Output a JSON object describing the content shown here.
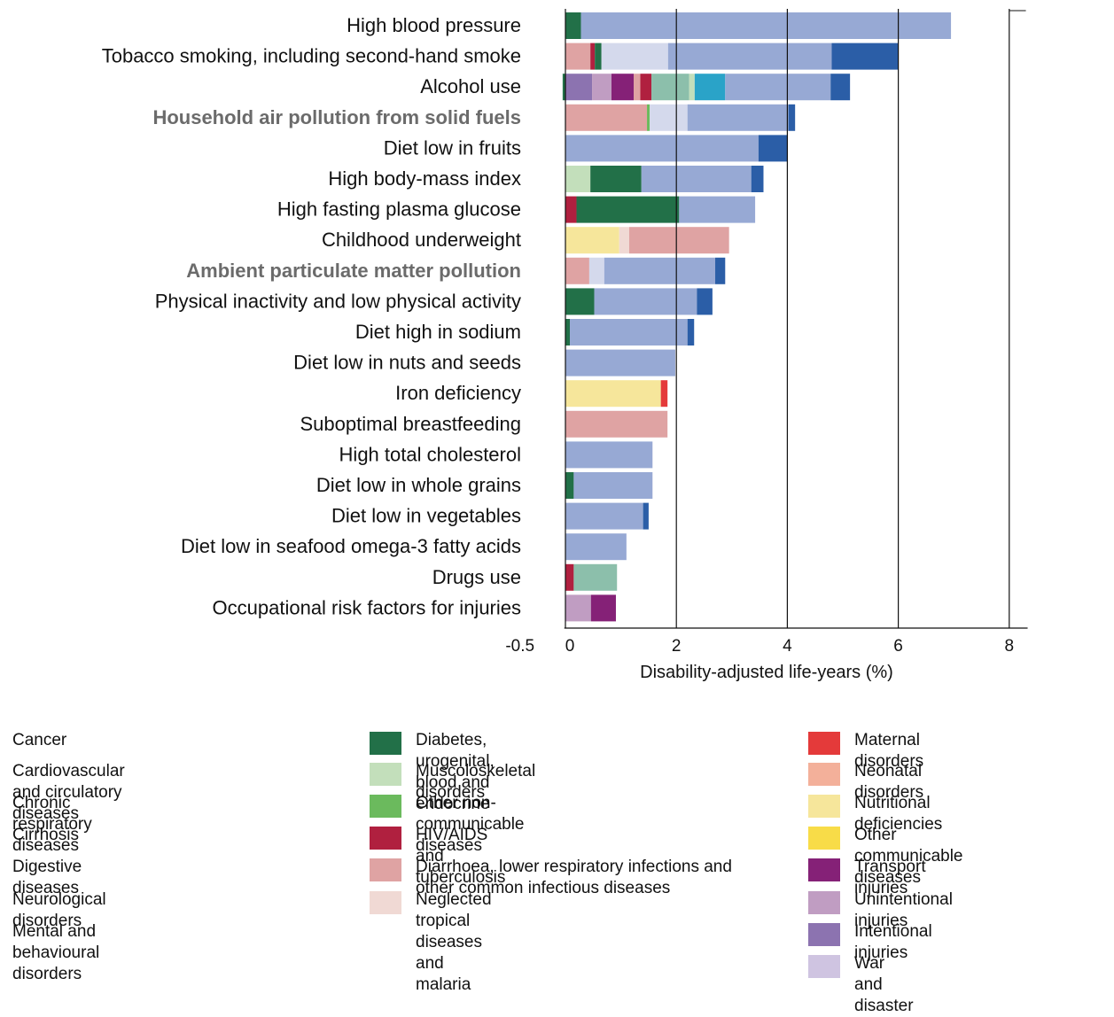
{
  "chart_data": {
    "type": "bar",
    "orientation": "horizontal",
    "stacked": true,
    "xlabel": "Disability-adjusted life-years (%)",
    "xlim": [
      -0.5,
      8.3
    ],
    "xticks": [
      "-0.5",
      "0",
      "2",
      "4",
      "6",
      "8"
    ],
    "xtick_values": [
      -0.5,
      0,
      2,
      4,
      6,
      8
    ],
    "grid": "vertical lines at 2, 4, 6, 8",
    "categories": [
      {
        "label": "High blood pressure",
        "highlight": false,
        "segments": [
          {
            "cause": "Diabetes, urogenital, blood and endocrine",
            "value": 0.28
          },
          {
            "cause": "Cardiovascular and circulatory diseases",
            "value": 6.67
          }
        ]
      },
      {
        "label": "Tobacco smoking, including second-hand smoke",
        "highlight": false,
        "segments": [
          {
            "cause": "Diarrhoea, lower respiratory infections and other common infectious diseases",
            "value": 0.45
          },
          {
            "cause": "HIV/AIDS and tuberculosis",
            "value": 0.08
          },
          {
            "cause": "Diabetes, urogenital, blood and endocrine",
            "value": 0.12
          },
          {
            "cause": "Cancer",
            "value": 1.2
          },
          {
            "cause": "Cardiovascular and circulatory diseases",
            "value": 2.95
          },
          {
            "cause": "Chronic respiratory diseases",
            "value": 1.2
          }
        ]
      },
      {
        "label": "Alcohol use",
        "highlight": false,
        "segments": [
          {
            "cause": "Diabetes, urogenital, blood and endocrine",
            "value": -0.05
          },
          {
            "cause": "Intentional injuries",
            "value": 0.48
          },
          {
            "cause": "Unintentional injuries",
            "value": 0.35
          },
          {
            "cause": "Transport injuries",
            "value": 0.4
          },
          {
            "cause": "Diarrhoea, lower respiratory infections and other common infectious diseases",
            "value": 0.12
          },
          {
            "cause": "HIV/AIDS and tuberculosis",
            "value": 0.2
          },
          {
            "cause": "Mental and behavioural disorders",
            "value": 0.68
          },
          {
            "cause": "Muscoloskeletal disorders",
            "value": 0.1
          },
          {
            "cause": "Digestive diseases",
            "value": 0.55
          },
          {
            "cause": "Cardiovascular and circulatory diseases",
            "value": 1.9
          },
          {
            "cause": "Chronic respiratory diseases",
            "value": 0.35
          }
        ]
      },
      {
        "label": "Household air pollution from solid fuels",
        "highlight": true,
        "segments": [
          {
            "cause": "Diarrhoea, lower respiratory infections and other common infectious diseases",
            "value": 1.47
          },
          {
            "cause": "Other non-communicable diseases",
            "value": 0.05
          },
          {
            "cause": "Cancer",
            "value": 0.68
          },
          {
            "cause": "Cardiovascular and circulatory diseases",
            "value": 1.82
          },
          {
            "cause": "Chronic respiratory diseases",
            "value": 0.12
          }
        ]
      },
      {
        "label": "Diet low in fruits",
        "highlight": false,
        "segments": [
          {
            "cause": "Cardiovascular and circulatory diseases",
            "value": 3.48
          },
          {
            "cause": "Chronic respiratory diseases",
            "value": 0.52
          }
        ]
      },
      {
        "label": "High body-mass index",
        "highlight": false,
        "segments": [
          {
            "cause": "Muscoloskeletal disorders",
            "value": 0.45
          },
          {
            "cause": "Diabetes, urogenital, blood and endocrine",
            "value": 0.92
          },
          {
            "cause": "Cardiovascular and circulatory diseases",
            "value": 1.98
          },
          {
            "cause": "Chronic respiratory diseases",
            "value": 0.22
          }
        ]
      },
      {
        "label": "High fasting plasma glucose",
        "highlight": false,
        "segments": [
          {
            "cause": "HIV/AIDS and tuberculosis",
            "value": 0.2
          },
          {
            "cause": "Diabetes, urogenital, blood and endocrine",
            "value": 1.85
          },
          {
            "cause": "Cardiovascular and circulatory diseases",
            "value": 1.37
          }
        ]
      },
      {
        "label": "Childhood underweight",
        "highlight": false,
        "segments": [
          {
            "cause": "Nutritional deficiencies",
            "value": 0.97
          },
          {
            "cause": "Neglected tropical diseases and malaria",
            "value": 0.18
          },
          {
            "cause": "Diarrhoea, lower respiratory infections and other common infectious diseases",
            "value": 1.8
          }
        ]
      },
      {
        "label": "Ambient particulate matter pollution",
        "highlight": true,
        "segments": [
          {
            "cause": "Diarrhoea, lower respiratory infections and other common infectious diseases",
            "value": 0.43
          },
          {
            "cause": "Cancer",
            "value": 0.27
          },
          {
            "cause": "Cardiovascular and circulatory diseases",
            "value": 2.0
          },
          {
            "cause": "Chronic respiratory diseases",
            "value": 0.18
          }
        ]
      },
      {
        "label": "Physical inactivity and low physical activity",
        "highlight": false,
        "segments": [
          {
            "cause": "Diabetes, urogenital, blood and endocrine",
            "value": 0.52
          },
          {
            "cause": "Cardiovascular and circulatory diseases",
            "value": 1.85
          },
          {
            "cause": "Chronic respiratory diseases",
            "value": 0.28
          }
        ]
      },
      {
        "label": "Diet high in sodium",
        "highlight": false,
        "segments": [
          {
            "cause": "Diabetes, urogenital, blood and endocrine",
            "value": 0.08
          },
          {
            "cause": "Cardiovascular and circulatory diseases",
            "value": 2.12
          },
          {
            "cause": "Chronic respiratory diseases",
            "value": 0.12
          }
        ]
      },
      {
        "label": "Diet low in nuts and seeds",
        "highlight": false,
        "segments": [
          {
            "cause": "Cardiovascular and circulatory diseases",
            "value": 1.98
          }
        ]
      },
      {
        "label": "Iron deficiency",
        "highlight": false,
        "segments": [
          {
            "cause": "Nutritional deficiencies",
            "value": 1.72
          },
          {
            "cause": "Maternal disorders",
            "value": 0.12
          }
        ]
      },
      {
        "label": "Suboptimal breastfeeding",
        "highlight": false,
        "segments": [
          {
            "cause": "Diarrhoea, lower respiratory infections and other common infectious diseases",
            "value": 1.84
          }
        ]
      },
      {
        "label": "High total cholesterol",
        "highlight": false,
        "segments": [
          {
            "cause": "Cardiovascular and circulatory diseases",
            "value": 1.57
          }
        ]
      },
      {
        "label": "Diet low in whole grains",
        "highlight": false,
        "segments": [
          {
            "cause": "Diabetes, urogenital, blood and endocrine",
            "value": 0.15
          },
          {
            "cause": "Cardiovascular and circulatory diseases",
            "value": 1.42
          }
        ]
      },
      {
        "label": "Diet low in vegetables",
        "highlight": false,
        "segments": [
          {
            "cause": "Cardiovascular and circulatory diseases",
            "value": 1.4
          },
          {
            "cause": "Chronic respiratory diseases",
            "value": 0.1
          }
        ]
      },
      {
        "label": "Diet low in seafood omega-3 fatty acids",
        "highlight": false,
        "segments": [
          {
            "cause": "Cardiovascular and circulatory diseases",
            "value": 1.1
          }
        ]
      },
      {
        "label": "Drugs use",
        "highlight": false,
        "segments": [
          {
            "cause": "HIV/AIDS and tuberculosis",
            "value": 0.15
          },
          {
            "cause": "Mental and behavioural disorders",
            "value": 0.78
          }
        ]
      },
      {
        "label": "Occupational risk factors for injuries",
        "highlight": false,
        "segments": [
          {
            "cause": "Unintentional injuries",
            "value": 0.46
          },
          {
            "cause": "Transport injuries",
            "value": 0.45
          }
        ]
      }
    ],
    "legend": {
      "placement": "bottom",
      "columns": [
        [
          {
            "label": "Cancer",
            "color": "#d4d9ec"
          },
          {
            "label": "Cardiovascular and circulatory diseases",
            "color": "#97a9d4"
          },
          {
            "label": "Chronic respiratory diseases",
            "color": "#2b5ea7"
          },
          {
            "label": "Cirrhosis",
            "color": "#1a4f8e"
          },
          {
            "label": "Digestive diseases",
            "color": "#2aa3c8"
          },
          {
            "label": "Neurological disorders",
            "color": "#c9e3e8"
          },
          {
            "label": "Mental and behavioural disorders",
            "color": "#8cbfab"
          }
        ],
        [
          {
            "label": "Diabetes, urogenital, blood and endocrine",
            "color": "#227048"
          },
          {
            "label": "Muscoloskeletal disorders",
            "color": "#c3dfbb"
          },
          {
            "label": "Other non-communicable diseases",
            "color": "#6bba5d"
          },
          {
            "label": "HIV/AIDS and tuberculosis",
            "color": "#b0203f"
          },
          {
            "label": "Diarrhoea, lower respiratory infections and other common infectious diseases",
            "color": "#dfa3a3"
          },
          {
            "label": "Neglected tropical diseases and malaria",
            "color": "#f0d9d4"
          }
        ],
        [
          {
            "label": "Maternal disorders",
            "color": "#e43a3a"
          },
          {
            "label": "Neonatal disorders",
            "color": "#f3b09a"
          },
          {
            "label": "Nutritional deficiencies",
            "color": "#f6e69b"
          },
          {
            "label": "Other communicable diseases",
            "color": "#f8dc48"
          },
          {
            "label": "Transport injuries",
            "color": "#852177"
          },
          {
            "label": "Unintentional injuries",
            "color": "#c09dc2"
          },
          {
            "label": "Intentional injuries",
            "color": "#8c73b0"
          },
          {
            "label": "War and disaster",
            "color": "#cfc4e1"
          }
        ]
      ]
    }
  }
}
